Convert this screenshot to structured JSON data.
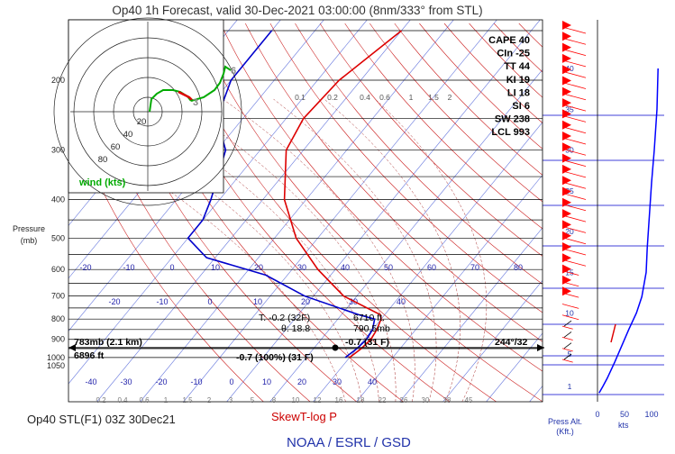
{
  "title": "Op40 1h Forecast, valid 30-Dec-2021 03:00:00 (8nm/333° from STL)",
  "footer_left": "Op40 STL(F1) 03Z 30Dec21",
  "skewt_label": "SkewT-log P",
  "org_label": "NOAA / ESRL / GSD",
  "pressure_axis_label": [
    "Pressure",
    "(mb)"
  ],
  "press_alt_label": [
    "Press Alt.",
    "(Kft.)"
  ],
  "kts_label": "kts",
  "colors": {
    "temperature": "#dd0000",
    "dewpoint": "#0000cc",
    "isotherm": "#6677dd",
    "dry_adiabat": "#cc2222",
    "moist_adiabat": "#aa3333",
    "mixing_ratio": "#995555",
    "barb": "#ff0000",
    "wind_profile": "#0000ff",
    "hodograph_low": "#dd0000",
    "hodograph_high": "#00aa00"
  },
  "stats": [
    {
      "label": "CAPE",
      "value": "40"
    },
    {
      "label": "CIn",
      "value": "-25"
    },
    {
      "label": "TT",
      "value": "44"
    },
    {
      "label": "KI",
      "value": "19"
    },
    {
      "label": "LI",
      "value": "18"
    },
    {
      "label": "SI",
      "value": "6"
    },
    {
      "label": "SW",
      "value": "238"
    },
    {
      "label": "LCL",
      "value": "993"
    }
  ],
  "annotations": {
    "parcel_t": "T: -0.2 (32F)",
    "parcel_height": "6710 ft.",
    "theta": "θ: 18.8",
    "parcel_pressure": "790.5mb",
    "cursor_temp": "-0.7 (31 F)",
    "surface_dew": "-0.7 (100%) (31 F)",
    "cursor_mb": "783mb (2.1 km)",
    "cursor_ft": "6896 ft",
    "cursor_wind": "244°/32"
  },
  "hodograph": {
    "ring_labels": [
      "20",
      "40",
      "60",
      "80"
    ],
    "legend": "wind (kts)",
    "low_label": "3",
    "high_label": "6"
  },
  "wind_axis": {
    "ticks": [
      0,
      50,
      100
    ],
    "altitude_labels": [
      "1",
      "5",
      "10",
      "15",
      "20",
      "25",
      "30",
      "35",
      "40"
    ]
  },
  "chart_data": {
    "type": "line",
    "title": "Op40 1h Forecast, valid 30-Dec-2021 03:00:00 (8nm/333° from STL)",
    "xlabel": "",
    "ylabel": "Pressure (mb)",
    "ylim": [
      1050,
      120
    ],
    "pressure_ticks": [
      200,
      300,
      400,
      500,
      600,
      700,
      800,
      900,
      1000,
      1050
    ],
    "temp_ticks_upper": [
      -20,
      -10,
      0,
      10,
      20,
      30,
      40,
      50,
      60,
      70,
      80
    ],
    "temp_ticks_middle": [
      -20,
      -10,
      0,
      10,
      20,
      30,
      40
    ],
    "temp_ticks_lower": [
      -40,
      -30,
      -20,
      -10,
      0,
      10,
      20,
      30,
      40
    ],
    "mixing_ratio_labels_upper": [
      "0.1",
      "0.2",
      "0.4",
      "0.6",
      "1",
      "1.5",
      "2"
    ],
    "mixing_ratio_labels_lower": [
      "0.2",
      "0.4",
      "0.6",
      "1",
      "1.5",
      "2",
      "3",
      "5",
      "8",
      "10",
      "12",
      "16",
      "18",
      "22",
      "26",
      "30",
      "38",
      "45"
    ],
    "series": [
      {
        "name": "Temperature",
        "points": [
          [
            -50,
            150
          ],
          [
            -55,
            200
          ],
          [
            -56,
            250
          ],
          [
            -54,
            300
          ],
          [
            -45,
            400
          ],
          [
            -35,
            500
          ],
          [
            -24,
            600
          ],
          [
            -13,
            700
          ],
          [
            -1,
            780
          ],
          [
            0,
            800
          ],
          [
            1,
            850
          ],
          [
            1.5,
            900
          ],
          [
            1,
            950
          ],
          [
            0,
            1000
          ]
        ]
      },
      {
        "name": "Dewpoint",
        "points": [
          [
            -80,
            150
          ],
          [
            -80,
            200
          ],
          [
            -76,
            250
          ],
          [
            -68,
            300
          ],
          [
            -62,
            400
          ],
          [
            -60,
            450
          ],
          [
            -60,
            500
          ],
          [
            -52,
            560
          ],
          [
            -35,
            620
          ],
          [
            -22,
            700
          ],
          [
            -6,
            780
          ],
          [
            -1.5,
            800
          ],
          [
            0,
            850
          ],
          [
            0.5,
            900
          ],
          [
            0,
            950
          ],
          [
            -1,
            1000
          ]
        ]
      }
    ],
    "wind_speed_profile": [
      {
        "alt_kft": 0.2,
        "kts": 3
      },
      {
        "alt_kft": 1,
        "kts": 10
      },
      {
        "alt_kft": 2,
        "kts": 18
      },
      {
        "alt_kft": 4,
        "kts": 32
      },
      {
        "alt_kft": 6,
        "kts": 45
      },
      {
        "alt_kft": 8,
        "kts": 58
      },
      {
        "alt_kft": 10,
        "kts": 72
      },
      {
        "alt_kft": 12,
        "kts": 82
      },
      {
        "alt_kft": 15,
        "kts": 90
      },
      {
        "alt_kft": 18,
        "kts": 92
      },
      {
        "alt_kft": 22,
        "kts": 96
      },
      {
        "alt_kft": 26,
        "kts": 100
      },
      {
        "alt_kft": 30,
        "kts": 105
      },
      {
        "alt_kft": 35,
        "kts": 110
      },
      {
        "alt_kft": 40,
        "kts": 112
      }
    ]
  }
}
